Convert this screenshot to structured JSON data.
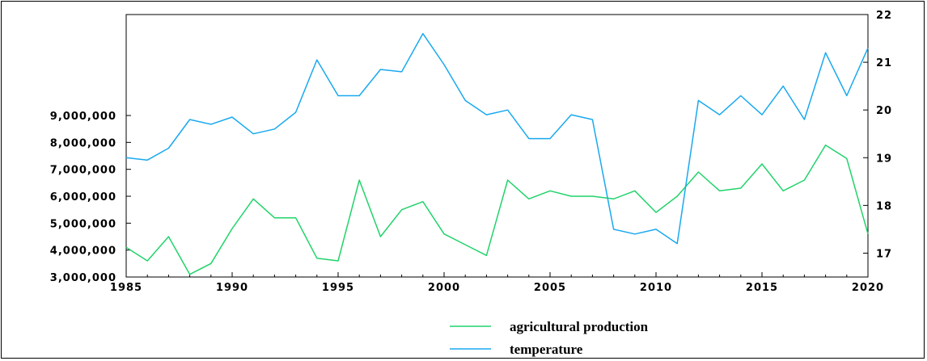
{
  "chart_data": {
    "type": "line",
    "x": [
      1985,
      1986,
      1987,
      1988,
      1989,
      1990,
      1991,
      1992,
      1993,
      1994,
      1995,
      1996,
      1997,
      1998,
      1999,
      2000,
      2001,
      2002,
      2003,
      2004,
      2005,
      2006,
      2007,
      2008,
      2009,
      2010,
      2011,
      2012,
      2013,
      2014,
      2015,
      2016,
      2017,
      2018,
      2019,
      2020
    ],
    "xlim": [
      1985,
      2020
    ],
    "x_ticks": [
      1985,
      1990,
      1995,
      2000,
      2005,
      2010,
      2015,
      2020
    ],
    "x_tick_labels": [
      "1985",
      "1990",
      "1995",
      "2000",
      "2005",
      "2010",
      "2015",
      "2020"
    ],
    "y_left": {
      "lim": [
        3000000,
        9000000
      ],
      "ticks": [
        3000000,
        4000000,
        5000000,
        6000000,
        7000000,
        8000000,
        9000000
      ],
      "tick_labels": [
        "3,000,000",
        "4,000,000",
        "5,000,000",
        "6,000,000",
        "7,000,000",
        "8,000,000",
        "9,000,000"
      ]
    },
    "y_right": {
      "lim": [
        17,
        22
      ],
      "ticks": [
        17,
        18,
        19,
        20,
        21,
        22
      ],
      "tick_labels": [
        "17",
        "18",
        "19",
        "20",
        "21",
        "22"
      ]
    },
    "series": [
      {
        "name": "agricultural production",
        "axis": "left",
        "color": "#21d36b",
        "values": [
          4100000,
          3600000,
          4500000,
          3100000,
          3500000,
          4800000,
          5900000,
          5200000,
          5200000,
          3700000,
          3600000,
          6600000,
          4500000,
          5500000,
          5800000,
          4600000,
          4200000,
          3800000,
          6600000,
          5900000,
          6200000,
          6000000,
          6000000,
          5900000,
          6200000,
          5400000,
          6000000,
          6900000,
          6200000,
          6300000,
          7200000,
          6200000,
          6600000,
          7900000,
          7400000,
          4600000
        ]
      },
      {
        "name": "temperature",
        "axis": "right",
        "color": "#19a9ef",
        "values": [
          19.0,
          18.95,
          19.2,
          19.8,
          19.7,
          19.85,
          19.5,
          19.6,
          19.95,
          21.05,
          20.3,
          20.3,
          20.85,
          20.8,
          21.6,
          20.95,
          20.2,
          19.9,
          20.0,
          19.4,
          19.4,
          19.9,
          19.8,
          17.5,
          17.4,
          17.5,
          17.2,
          20.2,
          19.9,
          20.3,
          19.9,
          20.5,
          19.8,
          21.2,
          20.3,
          21.3
        ]
      }
    ],
    "legend": "bottom-center",
    "grid": false
  }
}
